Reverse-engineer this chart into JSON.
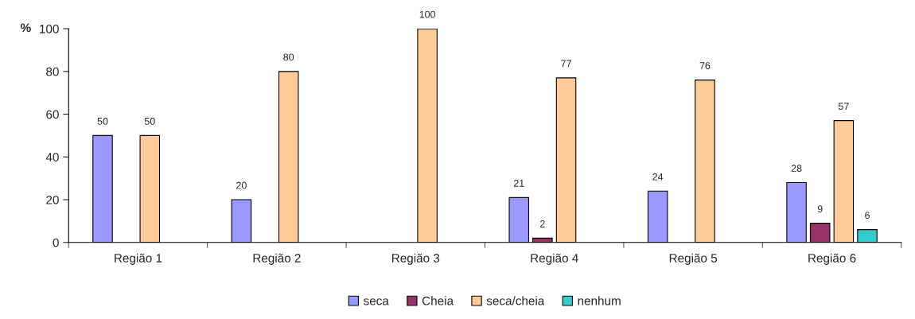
{
  "chart_data": {
    "type": "bar",
    "ylabel": "%",
    "categories": [
      "Região 1",
      "Região 2",
      "Região 3",
      "Região 4",
      "Região 5",
      "Região 6"
    ],
    "series": [
      {
        "name": "seca",
        "color": "#9999ff",
        "values": [
          50,
          20,
          null,
          21,
          24,
          28
        ]
      },
      {
        "name": "Cheia",
        "color": "#993366",
        "values": [
          null,
          null,
          null,
          2,
          null,
          9
        ]
      },
      {
        "name": "seca/cheia",
        "color": "#ffcc99",
        "values": [
          50,
          80,
          100,
          77,
          76,
          57
        ]
      },
      {
        "name": "nenhum",
        "color": "#33cccc",
        "values": [
          null,
          null,
          null,
          null,
          null,
          6
        ]
      }
    ],
    "ylim": [
      0,
      100
    ],
    "yticks": [
      0,
      20,
      40,
      60,
      80,
      100
    ],
    "data_labels": true,
    "grid": false,
    "legend": "bottom"
  }
}
